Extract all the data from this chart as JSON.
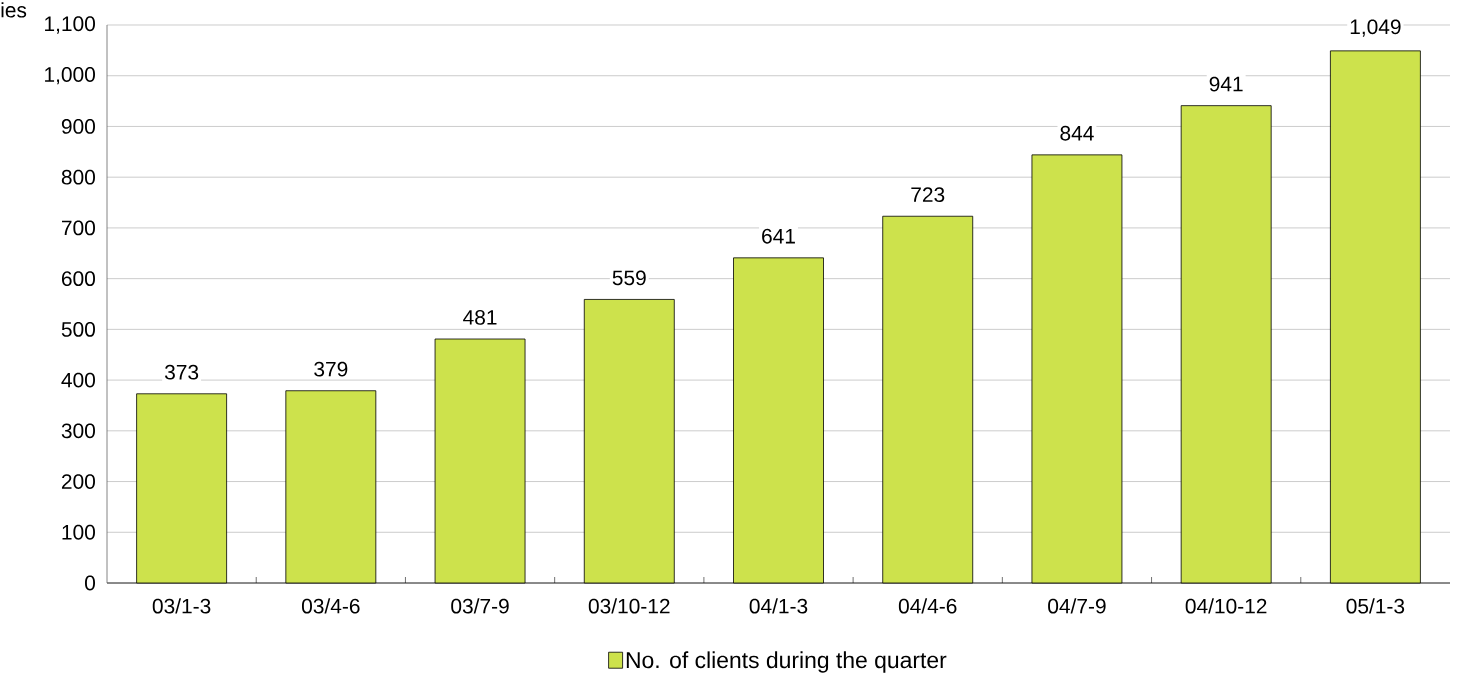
{
  "chart_data": {
    "type": "bar",
    "ylabel": "ies",
    "categories": [
      "03/1-3",
      "03/4-6",
      "03/7-9",
      "03/10-12",
      "04/1-3",
      "04/4-6",
      "04/7-9",
      "04/10-12",
      "05/1-3"
    ],
    "series": [
      {
        "name": "No. of clients during the quarter",
        "color": "#cde24c",
        "values": [
          373,
          379,
          481,
          559,
          641,
          723,
          844,
          941,
          1049
        ],
        "value_labels": [
          "373",
          "379",
          "481",
          "559",
          "641",
          "723",
          "844",
          "941",
          "1,049"
        ]
      }
    ],
    "ylim": [
      0,
      1100
    ],
    "yticks": [
      0,
      100,
      200,
      300,
      400,
      500,
      600,
      700,
      800,
      900,
      {
        "value": 1000,
        "label": "1,000"
      },
      {
        "value": 1100,
        "label": "1,100"
      }
    ],
    "grid": "y",
    "legend": "bottom"
  }
}
